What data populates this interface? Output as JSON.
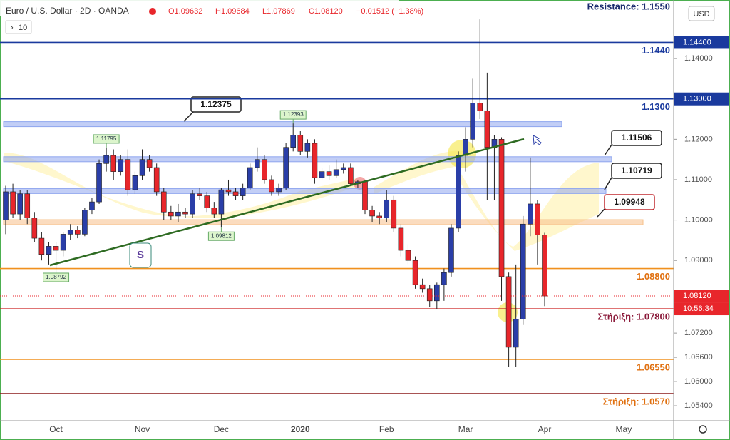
{
  "header": {
    "symbol": "Euro / U.S. Dollar · 2D · OANDA",
    "ohlc": [
      "O1.09632",
      "H1.09684",
      "L1.07869",
      "C1.08120",
      "−0.01512 (−1.38%)"
    ],
    "interval_box": "10",
    "currency": "USD",
    "marker": "S"
  },
  "chart_data": {
    "type": "candlestick",
    "categories": [
      null,
      null,
      null,
      null,
      null,
      null,
      null,
      "Oct",
      null,
      null,
      null,
      null,
      null,
      null,
      null,
      null,
      null,
      null,
      null,
      "Nov",
      null,
      null,
      null,
      null,
      null,
      null,
      null,
      null,
      null,
      null,
      "Dec",
      null,
      null,
      null,
      null,
      null,
      null,
      null,
      null,
      null,
      null,
      "2020",
      null,
      null,
      null,
      null,
      null,
      null,
      null,
      null,
      null,
      null,
      null,
      "Feb",
      null,
      null,
      null,
      null,
      null,
      null,
      null,
      null,
      null,
      null,
      "Mar",
      null,
      null,
      null,
      null,
      null,
      null,
      null,
      null,
      null,
      null,
      "Apr",
      null,
      null,
      null,
      null,
      null,
      null,
      null,
      null,
      null,
      null,
      "May",
      null
    ],
    "open": [
      1.1,
      1.107,
      1.1015,
      1.1065,
      1.1005,
      1.0955,
      1.0915,
      1.0935,
      1.0925,
      1.0965,
      1.0975,
      1.0965,
      1.1025,
      1.1045,
      1.114,
      1.116,
      1.112,
      1.115,
      1.1075,
      1.111,
      1.115,
      1.113,
      1.107,
      1.102,
      1.101,
      1.102,
      1.1015,
      1.1065,
      1.106,
      1.103,
      1.1015,
      1.1075,
      1.107,
      1.106,
      1.108,
      1.113,
      1.115,
      1.11,
      1.107,
      1.108,
      1.118,
      1.121,
      1.117,
      1.119,
      1.1105,
      1.112,
      1.111,
      1.1125,
      1.113,
      1.109,
      1.1095,
      1.1025,
      1.101,
      1.1005,
      1.105,
      1.098,
      1.0925,
      1.09,
      1.084,
      1.083,
      1.08,
      1.084,
      1.087,
      1.098,
      1.116,
      1.12,
      1.129,
      1.127,
      1.118,
      1.12,
      1.086,
      1.0685,
      1.0755,
      1.099,
      1.104,
      1.09632,
      null,
      null,
      null,
      null,
      null,
      null,
      null,
      null,
      null,
      null,
      null,
      null
    ],
    "high": [
      1.1085,
      1.109,
      1.1075,
      1.1075,
      1.102,
      1.097,
      1.0945,
      1.0945,
      1.097,
      1.099,
      1.0985,
      1.103,
      1.1055,
      1.115,
      1.11795,
      1.1175,
      1.116,
      1.1175,
      1.112,
      1.1175,
      1.116,
      1.114,
      1.108,
      1.1035,
      1.104,
      1.103,
      1.1075,
      1.108,
      1.107,
      1.1045,
      1.108,
      1.11,
      1.108,
      1.109,
      1.114,
      1.118,
      1.116,
      1.111,
      1.109,
      1.119,
      1.12393,
      1.122,
      1.12,
      1.12,
      1.113,
      1.1135,
      1.115,
      1.114,
      1.114,
      1.11,
      1.11,
      1.1035,
      1.102,
      1.1075,
      1.106,
      1.099,
      1.094,
      1.091,
      1.0855,
      1.084,
      1.0845,
      1.088,
      1.099,
      1.117,
      1.123,
      1.135,
      1.1497,
      1.1365,
      1.121,
      1.1205,
      1.087,
      1.089,
      1.101,
      1.1155,
      1.105,
      1.09684,
      null,
      null,
      null,
      null,
      null,
      null,
      null,
      null,
      null,
      null,
      null,
      null
    ],
    "low": [
      1.0965,
      1.1005,
      1.1,
      1.099,
      1.0945,
      1.09,
      1.089,
      1.08792,
      1.091,
      1.095,
      1.0955,
      1.096,
      1.1015,
      1.104,
      1.112,
      1.11,
      1.111,
      1.106,
      1.1065,
      1.11,
      1.112,
      1.106,
      1.1,
      1.1,
      1.0995,
      1.1005,
      1.1005,
      1.105,
      1.102,
      1.1005,
      1.09812,
      1.106,
      1.105,
      1.105,
      1.1075,
      1.112,
      1.109,
      1.106,
      1.106,
      1.1075,
      1.117,
      1.116,
      1.1155,
      1.109,
      1.11,
      1.11,
      1.1105,
      1.1115,
      1.1085,
      1.108,
      1.1015,
      1.0995,
      1.099,
      1.0995,
      1.097,
      1.091,
      1.089,
      1.083,
      1.082,
      1.0785,
      1.078,
      1.08,
      1.086,
      1.097,
      1.112,
      1.118,
      1.125,
      1.105,
      1.105,
      1.08,
      1.0636,
      1.0636,
      1.074,
      1.096,
      1.089,
      1.07869,
      null,
      null,
      null,
      null,
      null,
      null,
      null,
      null,
      null,
      null,
      null,
      null
    ],
    "close": [
      1.107,
      1.1015,
      1.1065,
      1.1005,
      1.0955,
      1.0915,
      1.0935,
      1.0925,
      1.0965,
      1.0975,
      1.0965,
      1.1025,
      1.1045,
      1.114,
      1.116,
      1.112,
      1.115,
      1.1075,
      1.111,
      1.115,
      1.113,
      1.107,
      1.102,
      1.101,
      1.102,
      1.1015,
      1.1065,
      1.106,
      1.103,
      1.1015,
      1.1075,
      1.107,
      1.106,
      1.108,
      1.113,
      1.115,
      1.11,
      1.107,
      1.108,
      1.118,
      1.121,
      1.117,
      1.119,
      1.1105,
      1.112,
      1.111,
      1.1125,
      1.113,
      1.109,
      1.1095,
      1.1025,
      1.101,
      1.1005,
      1.105,
      1.098,
      1.0925,
      1.09,
      1.084,
      1.083,
      1.08,
      1.084,
      1.087,
      1.098,
      1.116,
      1.12,
      1.129,
      1.127,
      1.118,
      1.12,
      1.086,
      1.0685,
      1.0755,
      1.099,
      1.104,
      1.0963,
      1.0812,
      null,
      null,
      null,
      null,
      null,
      null,
      null,
      null,
      null,
      null,
      null,
      null
    ],
    "up_color": "#2a3ea8",
    "down_color": "#e8262b",
    "ylim": [
      1.0503,
      1.1545
    ],
    "yticks": [
      {
        "value": 1.054,
        "label": "1.05400"
      },
      {
        "value": 1.06,
        "label": "1.06000"
      },
      {
        "value": 1.066,
        "label": "1.06600"
      },
      {
        "value": 1.072,
        "label": "1.07200"
      },
      {
        "value": 1.09,
        "label": "1.09000"
      },
      {
        "value": 1.1,
        "label": "1.10000"
      },
      {
        "value": 1.11,
        "label": "1.11000"
      },
      {
        "value": 1.12,
        "label": "1.12000"
      },
      {
        "value": 1.14,
        "label": "1.14000"
      }
    ],
    "resistance_label": "Resistance: 1.1550",
    "levels": [
      {
        "value": 1.144,
        "label": "1.1440",
        "color": "#1a3a9e",
        "label_color": "#1a3a9e"
      },
      {
        "value": 1.13,
        "label": "1.1300",
        "color": "#1a3a9e",
        "label_color": "#1a3a9e"
      },
      {
        "value": 1.088,
        "label": "1.08800",
        "color": "#f0901e",
        "label_color": "#e07010"
      },
      {
        "value": 1.078,
        "label": "Στήριξη: 1.07800",
        "color": "#cc2020",
        "label_color": "#8b1a3a"
      },
      {
        "value": 1.0655,
        "label": "1.06550",
        "color": "#f0901e",
        "label_color": "#e07010"
      },
      {
        "value": 1.057,
        "label": "Στήριξη: 1.0570",
        "color": "#8b1a1a",
        "label_color": "#e07010"
      }
    ],
    "bands": [
      {
        "value": 1.12375,
        "color": "#8fa6ee"
      },
      {
        "value": 1.11506,
        "color": "#8fa6ee"
      },
      {
        "value": 1.10719,
        "color": "#8fa6ee"
      },
      {
        "value": 1.09948,
        "color": "#f7c08a"
      }
    ],
    "pivots": [
      1.11795,
      1.12393,
      1.09812,
      1.08792
    ],
    "price_tags": [
      {
        "value": 1.144,
        "label": "1.14400",
        "color": "#1a3a9e"
      },
      {
        "value": 1.13,
        "label": "1.13000",
        "color": "#1a3a9e"
      },
      {
        "value": 1.0812,
        "label": "1.08120",
        "color": "#e8262b"
      }
    ],
    "countdown": "10:56:34"
  }
}
